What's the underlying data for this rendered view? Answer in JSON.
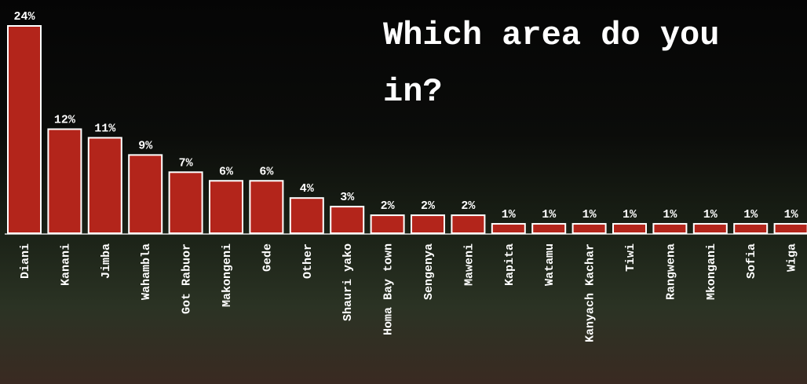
{
  "chart_data": {
    "type": "bar",
    "title_lines": [
      "Which area do you",
      "in?"
    ],
    "categories": [
      "Diani",
      "Kanani",
      "Jimba",
      "Wahambla",
      "Got Rabuor",
      "Makongeni",
      "Gede",
      "Other",
      "Shauri yako",
      "Homa Bay town",
      "Sengenya",
      "Maweni",
      "Kapita",
      "Watamu",
      "Kanyach Kachar",
      "Tiwi",
      "Rangwena",
      "Mkongani",
      "Sofia",
      "Wiga"
    ],
    "values": [
      24,
      12,
      11,
      9,
      7,
      6,
      6,
      4,
      3,
      2,
      2,
      2,
      1,
      1,
      1,
      1,
      1,
      1,
      1,
      1
    ],
    "value_labels": [
      "24%",
      "12%",
      "11%",
      "9%",
      "7%",
      "6%",
      "6%",
      "4%",
      "3%",
      "2%",
      "2%",
      "2%",
      "1%",
      "1%",
      "1%",
      "1%",
      "1%",
      "1%",
      "1%",
      "1%"
    ],
    "color": "#b3251b"
  }
}
